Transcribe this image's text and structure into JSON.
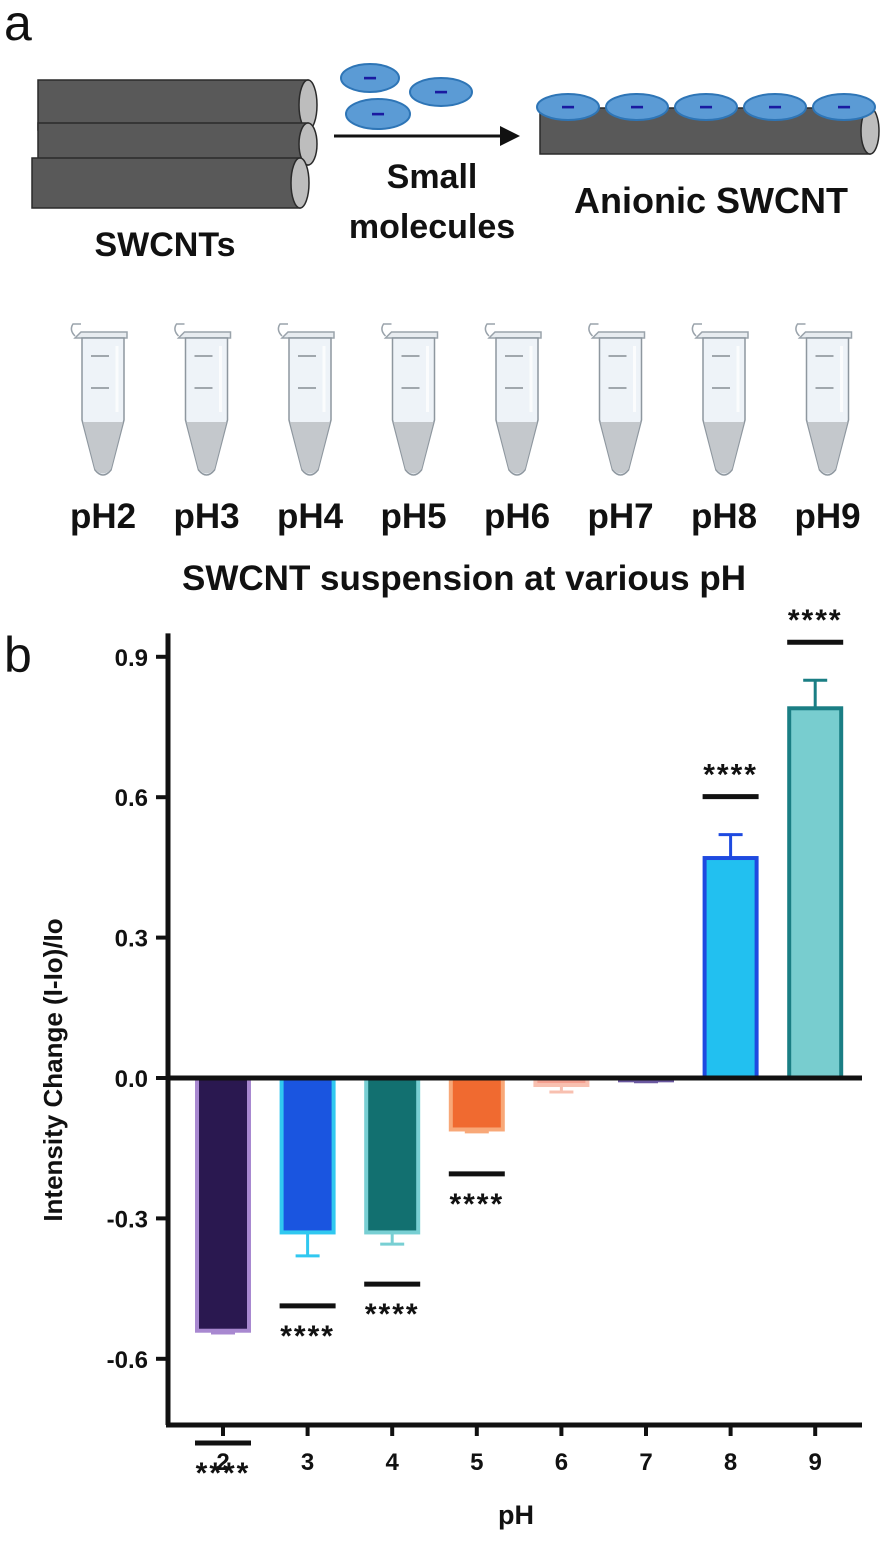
{
  "panel_a": {
    "letter": "a",
    "swcnts_label": "SWCNTs",
    "arrow_label_line1": "Small",
    "arrow_label_line2": "molecules",
    "product_label": "Anionic SWCNT",
    "charge_symbol": "−",
    "tube_labels": [
      "pH2",
      "pH3",
      "pH4",
      "pH5",
      "pH6",
      "pH7",
      "pH8",
      "pH9"
    ],
    "caption": "SWCNT suspension at various pH",
    "colors": {
      "nanotube": "#595959",
      "molecule_fill": "#5b9bd5",
      "molecule_stroke": "#2e75b6",
      "charge": "#1a1aa0"
    }
  },
  "panel_b": {
    "letter": "b"
  },
  "chart_data": {
    "type": "bar",
    "categories": [
      "2",
      "3",
      "4",
      "5",
      "6",
      "7",
      "8",
      "9"
    ],
    "values": [
      -0.54,
      -0.33,
      -0.33,
      -0.11,
      -0.015,
      -0.005,
      0.47,
      0.79
    ],
    "errors": [
      0.005,
      0.05,
      0.025,
      0.005,
      0.015,
      0.003,
      0.05,
      0.06
    ],
    "significance": [
      "****",
      "****",
      "****",
      "****",
      "",
      "",
      "****",
      "****"
    ],
    "xlabel": "pH",
    "ylabel": "Intensity Change (I-Io)/Io",
    "ylim": [
      -0.8,
      0.95
    ],
    "yticks": [
      "0.9",
      "0.6",
      "0.3",
      "0.0",
      "-0.3",
      "-0.6"
    ],
    "ytick_values": [
      0.9,
      0.6,
      0.3,
      0.0,
      -0.3,
      -0.6
    ],
    "grid": false,
    "bar_fill_colors": [
      "#2a1850",
      "#1a55e0",
      "#127070",
      "#f06a30",
      "#f4a090",
      "#3a2870",
      "#22c0f0",
      "#78cdcf"
    ],
    "bar_edge_colors": [
      "#a888d0",
      "#30c8f0",
      "#78cfd3",
      "#f8a878",
      "#f8c0b0",
      "#6a58a0",
      "#1e4ae0",
      "#1a7e84"
    ]
  }
}
